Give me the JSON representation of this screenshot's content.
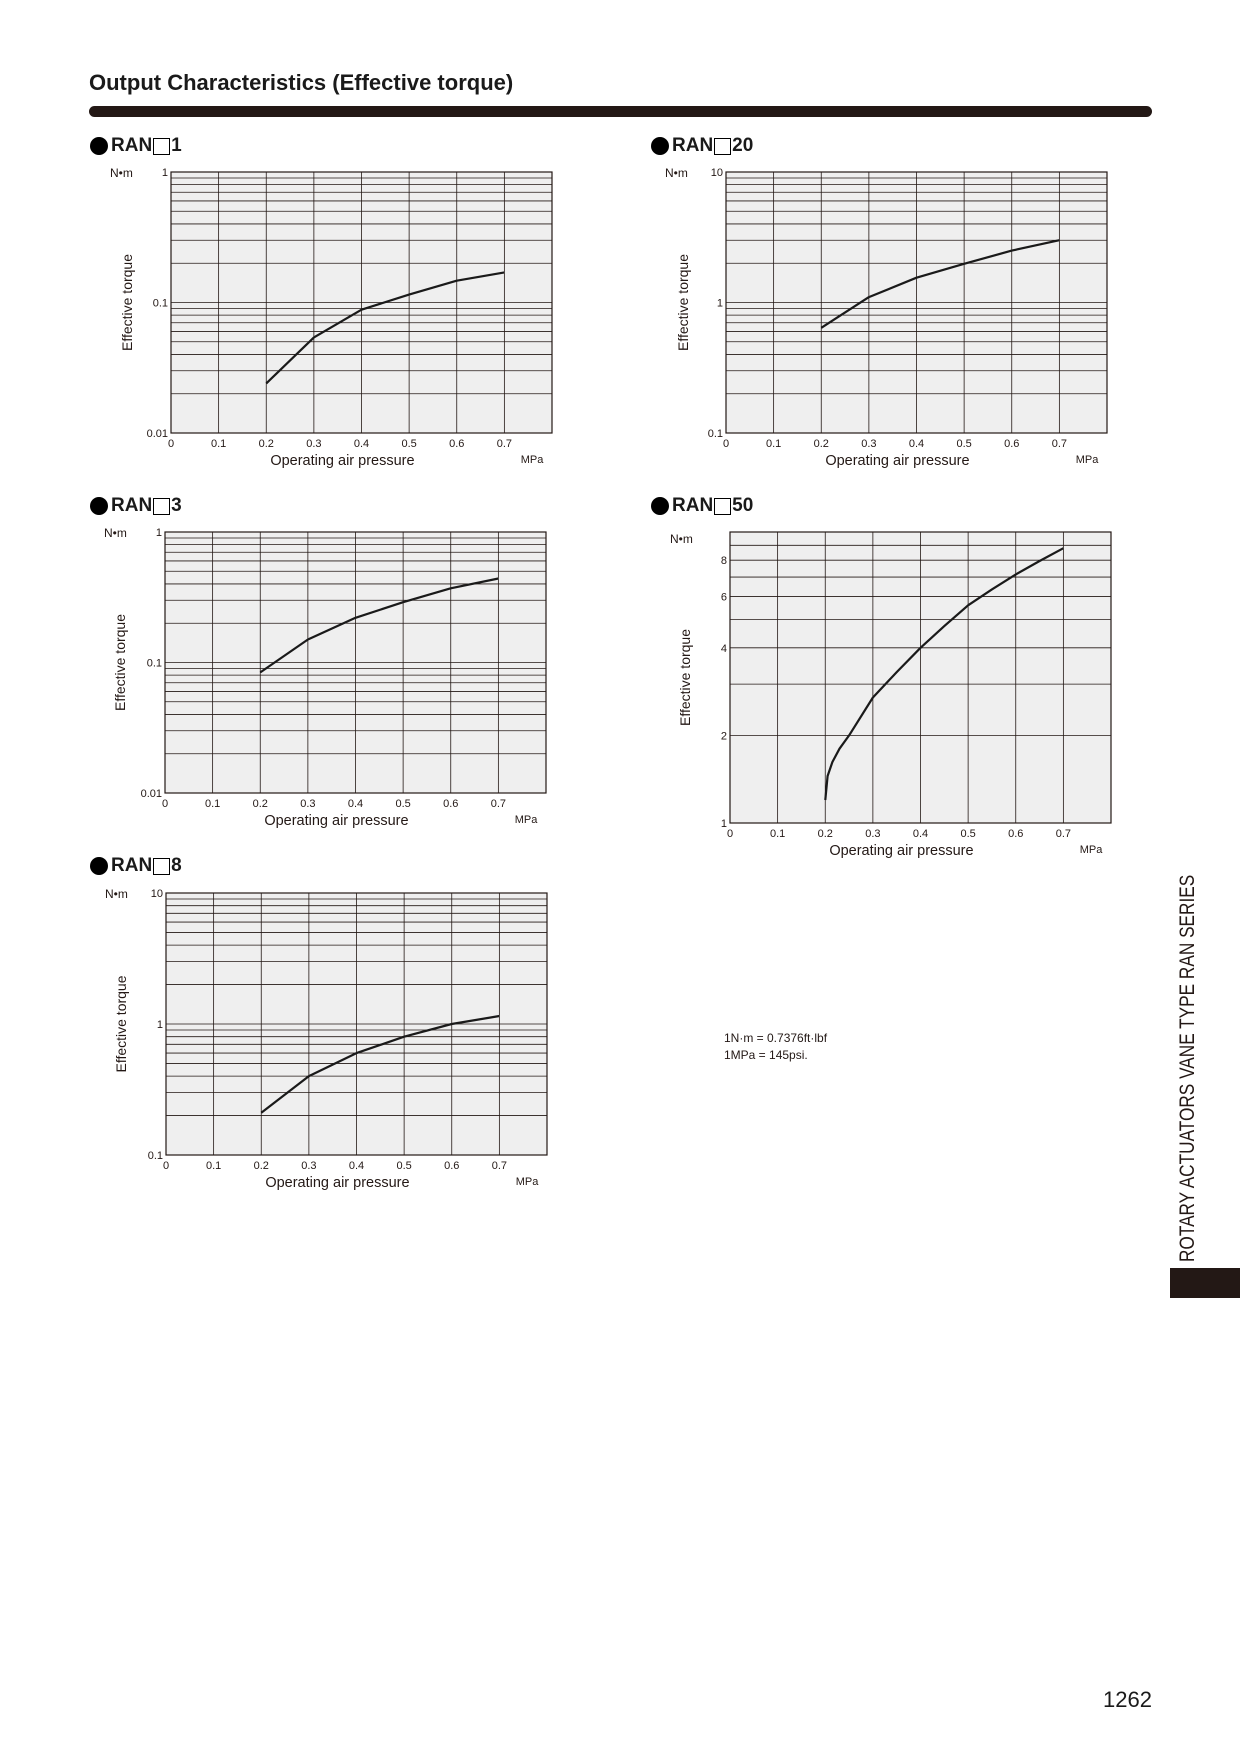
{
  "page": {
    "title": "Output Characteristics (Effective torque)",
    "side_label": "ROTARY ACTUATORS VANE TYPE RAN SERIES",
    "page_number": "1262",
    "notes": [
      "1N·m = 0.7376ft·lbf",
      "1MPa = 145psi."
    ]
  },
  "colors": {
    "plot_bg": "#efefef",
    "grid": "#231815",
    "curve": "#1a1a1a"
  },
  "chart_data": [
    {
      "model_prefix": "RAN",
      "model_suffix": "1",
      "type": "line",
      "yscale": "log",
      "title": "",
      "xlabel": "Operating air pressure",
      "ylabel": "Effective torque",
      "x_unit": "MPa",
      "y_unit": "N•m",
      "xlim": [
        0,
        0.8
      ],
      "ylim": [
        0.01,
        1
      ],
      "x_ticks": [
        "0",
        "0.1",
        "0.2",
        "0.3",
        "0.4",
        "0.5",
        "0.6",
        "0.7"
      ],
      "y_ticks": [
        "0.01",
        "0.1",
        "1"
      ],
      "grid": true,
      "legend": false,
      "series": [
        {
          "x": [
            0.2,
            0.3,
            0.4,
            0.5,
            0.6,
            0.7
          ],
          "y": [
            0.024,
            0.054,
            0.088,
            0.115,
            0.147,
            0.17
          ]
        }
      ]
    },
    {
      "model_prefix": "RAN",
      "model_suffix": "20",
      "type": "line",
      "yscale": "log",
      "title": "",
      "xlabel": "Operating air pressure",
      "ylabel": "Effective torque",
      "x_unit": "MPa",
      "y_unit": "N•m",
      "xlim": [
        0,
        0.8
      ],
      "ylim": [
        0.1,
        10
      ],
      "x_ticks": [
        "0",
        "0.1",
        "0.2",
        "0.3",
        "0.4",
        "0.5",
        "0.6",
        "0.7"
      ],
      "y_ticks": [
        "0.1",
        "1",
        "10"
      ],
      "grid": true,
      "legend": false,
      "series": [
        {
          "x": [
            0.2,
            0.3,
            0.4,
            0.5,
            0.6,
            0.7
          ],
          "y": [
            0.64,
            1.1,
            1.55,
            1.98,
            2.5,
            3.0
          ]
        }
      ]
    },
    {
      "model_prefix": "RAN",
      "model_suffix": "3",
      "type": "line",
      "yscale": "log",
      "title": "",
      "xlabel": "Operating air pressure",
      "ylabel": "Effective torque",
      "x_unit": "MPa",
      "y_unit": "N•m",
      "xlim": [
        0,
        0.8
      ],
      "ylim": [
        0.01,
        1
      ],
      "x_ticks": [
        "0",
        "0.1",
        "0.2",
        "0.3",
        "0.4",
        "0.5",
        "0.6",
        "0.7"
      ],
      "y_ticks": [
        "0.01",
        "0.1",
        "1"
      ],
      "grid": true,
      "legend": false,
      "series": [
        {
          "x": [
            0.2,
            0.3,
            0.4,
            0.5,
            0.6,
            0.7
          ],
          "y": [
            0.084,
            0.15,
            0.22,
            0.29,
            0.37,
            0.44
          ]
        }
      ]
    },
    {
      "model_prefix": "RAN",
      "model_suffix": "50",
      "type": "line",
      "yscale": "log",
      "title": "",
      "xlabel": "Operating air pressure",
      "ylabel": "Effective torque",
      "x_unit": "MPa",
      "y_unit": "N•m",
      "xlim": [
        0,
        0.8
      ],
      "ylim": [
        1,
        10
      ],
      "x_ticks": [
        "0",
        "0.1",
        "0.2",
        "0.3",
        "0.4",
        "0.5",
        "0.6",
        "0.7"
      ],
      "y_ticks": [
        "1",
        "2",
        "4",
        "6",
        "8"
      ],
      "grid": true,
      "legend": false,
      "series": [
        {
          "x": [
            0.2,
            0.205,
            0.215,
            0.23,
            0.25,
            0.3,
            0.35,
            0.4,
            0.45,
            0.5,
            0.55,
            0.6,
            0.65,
            0.7
          ],
          "y": [
            1.2,
            1.45,
            1.62,
            1.8,
            2.0,
            2.7,
            3.3,
            4.0,
            4.75,
            5.6,
            6.35,
            7.15,
            7.95,
            8.8
          ]
        }
      ]
    },
    {
      "model_prefix": "RAN",
      "model_suffix": "8",
      "type": "line",
      "yscale": "log",
      "title": "",
      "xlabel": "Operating air pressure",
      "ylabel": "Effective torque",
      "x_unit": "MPa",
      "y_unit": "N•m",
      "xlim": [
        0,
        0.8
      ],
      "ylim": [
        0.1,
        10
      ],
      "x_ticks": [
        "0",
        "0.1",
        "0.2",
        "0.3",
        "0.4",
        "0.5",
        "0.6",
        "0.7"
      ],
      "y_ticks": [
        "0.1",
        "1",
        "10"
      ],
      "grid": true,
      "legend": false,
      "series": [
        {
          "x": [
            0.2,
            0.3,
            0.4,
            0.5,
            0.6,
            0.7
          ],
          "y": [
            0.21,
            0.4,
            0.6,
            0.8,
            1.0,
            1.15
          ]
        }
      ]
    }
  ]
}
